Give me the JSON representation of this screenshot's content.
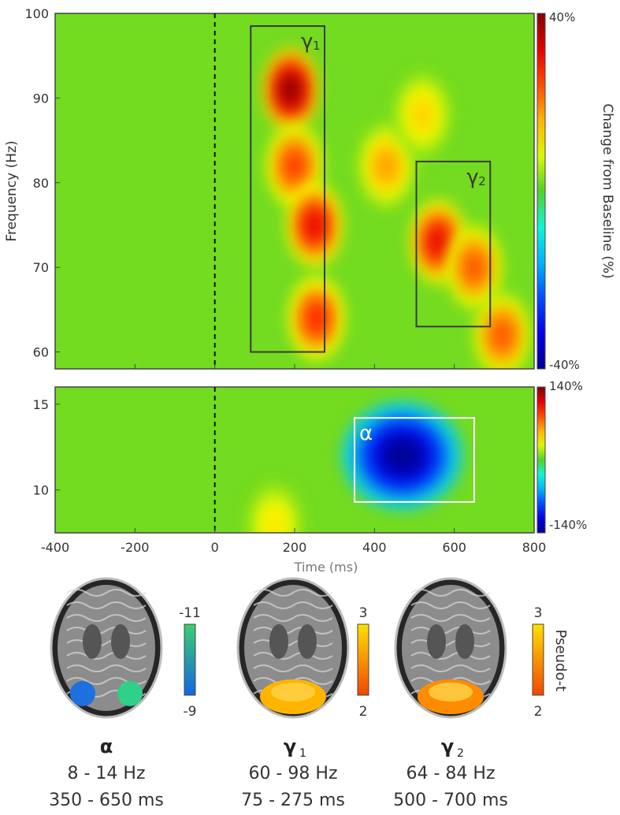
{
  "chart_data": [
    {
      "type": "heatmap",
      "panel": "gamma",
      "xlabel": "Time (ms)",
      "ylabel": "Frequency (Hz)",
      "xlim": [
        -400,
        800
      ],
      "ylim": [
        58,
        100
      ],
      "xticks": [
        -400,
        -200,
        0,
        200,
        400,
        600,
        800
      ],
      "yticks": [
        60,
        70,
        80,
        90,
        100
      ],
      "colorbar": {
        "label": "Change from Baseline (%)",
        "max_label": "40%",
        "min_label": "-40%",
        "colormap": "jet"
      },
      "stimulus_onset_ms": 0,
      "boxes": [
        {
          "label": "γ",
          "sub": "1",
          "t": [
            90,
            275
          ],
          "f": [
            60,
            98.5
          ]
        },
        {
          "label": "γ",
          "sub": "2",
          "t": [
            505,
            690
          ],
          "f": [
            63,
            82.5
          ]
        }
      ],
      "hotspots": [
        {
          "t": 190,
          "f": 91,
          "v": 1.0
        },
        {
          "t": 200,
          "f": 82,
          "v": 0.65
        },
        {
          "t": 250,
          "f": 75,
          "v": 0.8
        },
        {
          "t": 255,
          "f": 64,
          "v": 0.7
        },
        {
          "t": 430,
          "f": 82,
          "v": 0.45
        },
        {
          "t": 560,
          "f": 73,
          "v": 0.8
        },
        {
          "t": 650,
          "f": 70,
          "v": 0.6
        },
        {
          "t": 720,
          "f": 62,
          "v": 0.6
        },
        {
          "t": 520,
          "f": 88,
          "v": 0.35
        }
      ]
    },
    {
      "type": "heatmap",
      "panel": "alpha",
      "xlabel": "Time (ms)",
      "ylim": [
        7.5,
        16
      ],
      "xlim": [
        -400,
        800
      ],
      "xticks": [
        -400,
        -200,
        0,
        200,
        400,
        600,
        800
      ],
      "yticks": [
        10,
        15
      ],
      "colorbar": {
        "max_label": "140%",
        "min_label": "-140%",
        "colormap": "jet"
      },
      "boxes": [
        {
          "label": "α",
          "sub": "",
          "t": [
            350,
            650
          ],
          "f": [
            9.3,
            14.2
          ]
        }
      ],
      "hotspots": [
        {
          "t": 470,
          "f": 12,
          "v": -1.0
        },
        {
          "t": 150,
          "f": 8,
          "v": 0.3
        }
      ]
    }
  ],
  "brains": [
    {
      "name": "α",
      "sub": "",
      "freq": "8 - 14 Hz",
      "time": "350 - 650 ms",
      "scale_top": "-11",
      "scale_bottom": "-9",
      "blob_color": "#1e8fe0"
    },
    {
      "name": "γ",
      "sub": "1",
      "freq": "60 - 98 Hz",
      "time": "75 - 275 ms",
      "scale_top": "3",
      "scale_bottom": "2",
      "blob_color": "#ffb400"
    },
    {
      "name": "γ",
      "sub": "2",
      "freq": "64 - 84 Hz",
      "time": "500 - 700 ms",
      "scale_top": "3",
      "scale_bottom": "2",
      "blob_color": "#ff8c00"
    }
  ],
  "pseudo_t_label": "Pseudo-t",
  "colors": {
    "frame": "#444444",
    "alpha_box": "#ffffff",
    "gamma_box": "#3a3a3a"
  }
}
